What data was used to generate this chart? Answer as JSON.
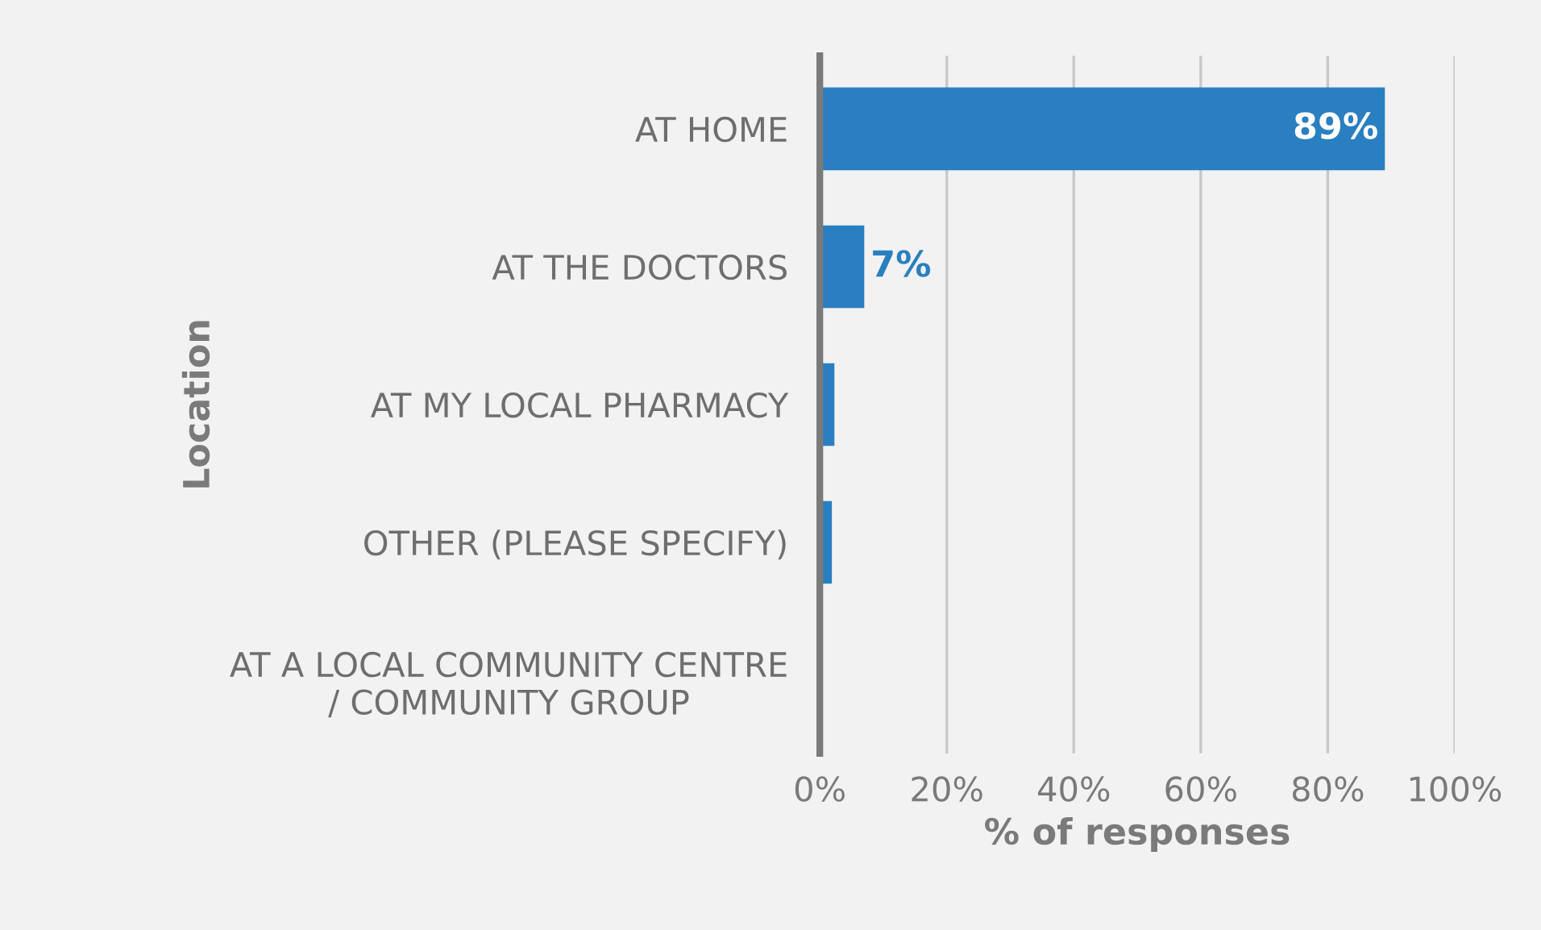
{
  "chart_data": {
    "type": "bar",
    "orientation": "horizontal",
    "categories": [
      "AT HOME",
      "AT THE DOCTORS",
      "AT MY LOCAL PHARMACY",
      "OTHER (PLEASE SPECIFY)",
      "AT A LOCAL COMMUNITY CENTRE\n/ COMMUNITY GROUP"
    ],
    "values": [
      89,
      7,
      2.3,
      1.9,
      0
    ],
    "value_labels": [
      "89%",
      "7%",
      null,
      null,
      null
    ],
    "color": "#2a7fc0",
    "xlim": [
      0,
      100
    ],
    "xticks": [
      {
        "value": 0,
        "label": "0%"
      },
      {
        "value": 20,
        "label": "20%"
      },
      {
        "value": 40,
        "label": "40%"
      },
      {
        "value": 60,
        "label": "60%"
      },
      {
        "value": 80,
        "label": "80%"
      },
      {
        "value": 100,
        "label": "100%"
      }
    ],
    "xlabel": "% of responses",
    "ylabel": "Location",
    "grid": "x",
    "legend": false
  }
}
